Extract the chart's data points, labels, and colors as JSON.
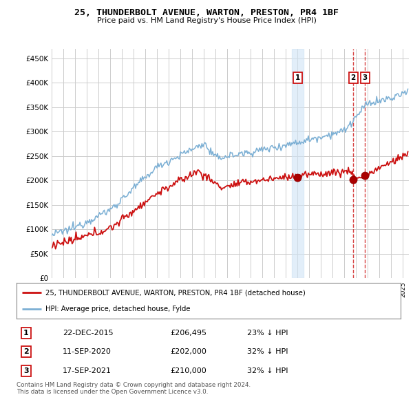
{
  "title": "25, THUNDERBOLT AVENUE, WARTON, PRESTON, PR4 1BF",
  "subtitle": "Price paid vs. HM Land Registry's House Price Index (HPI)",
  "hpi_label": "HPI: Average price, detached house, Fylde",
  "property_label": "25, THUNDERBOLT AVENUE, WARTON, PRESTON, PR4 1BF (detached house)",
  "ytick_vals": [
    0,
    50000,
    100000,
    150000,
    200000,
    250000,
    300000,
    350000,
    400000,
    450000
  ],
  "ylim": [
    0,
    470000
  ],
  "hpi_color": "#7bafd4",
  "property_color": "#cc1111",
  "vline_color_dashed": "#cc1111",
  "vline_color_shaded": "#d0e4f5",
  "marker_color": "#aa0000",
  "grid_color": "#cccccc",
  "bg_color": "#ffffff",
  "transactions": [
    {
      "label": "1",
      "date": "22-DEC-2015",
      "price": 206495,
      "pct": "23% ↓ HPI",
      "year": 2016.0,
      "shaded": true
    },
    {
      "label": "2",
      "date": "11-SEP-2020",
      "price": 202000,
      "pct": "32% ↓ HPI",
      "year": 2020.75,
      "shaded": false
    },
    {
      "label": "3",
      "date": "17-SEP-2021",
      "price": 210000,
      "pct": "32% ↓ HPI",
      "year": 2021.75,
      "shaded": false
    }
  ],
  "footer": "Contains HM Land Registry data © Crown copyright and database right 2024.\nThis data is licensed under the Open Government Licence v3.0.",
  "x_start_year": 1995.0,
  "x_end_year": 2025.5
}
